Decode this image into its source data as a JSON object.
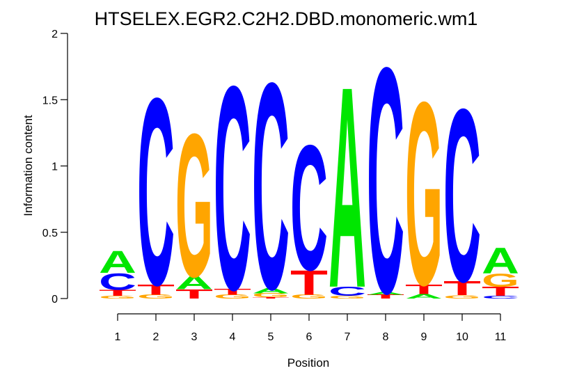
{
  "chart_data": {
    "type": "sequence-logo",
    "title": "HTSELEX.EGR2.C2H2.DBD.monomeric.wm1",
    "xlabel": "Position",
    "ylabel": "Information content",
    "ylim": [
      0,
      2
    ],
    "yticks": [
      "0",
      "0.5",
      "1",
      "1.5",
      "2"
    ],
    "positions": [
      "1",
      "2",
      "3",
      "4",
      "5",
      "6",
      "7",
      "8",
      "9",
      "10",
      "11"
    ],
    "colors": {
      "A": "#00e600",
      "C": "#0000ff",
      "G": "#ffa500",
      "T": "#ff0000"
    },
    "columns": [
      {
        "position": "1",
        "letters": [
          {
            "base": "G",
            "height": 0.02
          },
          {
            "base": "T",
            "height": 0.045
          },
          {
            "base": "C",
            "height": 0.13
          },
          {
            "base": "A",
            "height": 0.17
          }
        ]
      },
      {
        "position": "2",
        "letters": [
          {
            "base": "G",
            "height": 0.03
          },
          {
            "base": "T",
            "height": 0.08
          },
          {
            "base": "C",
            "height": 1.45
          }
        ]
      },
      {
        "position": "3",
        "letters": [
          {
            "base": "T",
            "height": 0.07
          },
          {
            "base": "A",
            "height": 0.1
          },
          {
            "base": "G",
            "height": 1.11
          }
        ]
      },
      {
        "position": "4",
        "letters": [
          {
            "base": "G",
            "height": 0.03
          },
          {
            "base": "T",
            "height": 0.045
          },
          {
            "base": "C",
            "height": 1.58
          }
        ]
      },
      {
        "position": "5",
        "letters": [
          {
            "base": "T",
            "height": 0.01
          },
          {
            "base": "G",
            "height": 0.03
          },
          {
            "base": "A",
            "height": 0.04
          },
          {
            "base": "C",
            "height": 1.6
          }
        ]
      },
      {
        "position": "6",
        "letters": [
          {
            "base": "G",
            "height": 0.03
          },
          {
            "base": "T",
            "height": 0.19
          },
          {
            "base": "C",
            "height": 0.97
          }
        ]
      },
      {
        "position": "7",
        "letters": [
          {
            "base": "G",
            "height": 0.02
          },
          {
            "base": "C",
            "height": 0.07
          },
          {
            "base": "A",
            "height": 1.56
          }
        ]
      },
      {
        "position": "8",
        "letters": [
          {
            "base": "T",
            "height": 0.03
          },
          {
            "base": "A",
            "height": 0.02
          },
          {
            "base": "C",
            "height": 1.75
          }
        ]
      },
      {
        "position": "9",
        "letters": [
          {
            "base": "A",
            "height": 0.035
          },
          {
            "base": "T",
            "height": 0.075
          },
          {
            "base": "G",
            "height": 1.42
          }
        ]
      },
      {
        "position": "10",
        "letters": [
          {
            "base": "G",
            "height": 0.025
          },
          {
            "base": "T",
            "height": 0.11
          },
          {
            "base": "C",
            "height": 1.34
          }
        ]
      },
      {
        "position": "11",
        "letters": [
          {
            "base": "C",
            "height": 0.02
          },
          {
            "base": "T",
            "height": 0.07
          },
          {
            "base": "G",
            "height": 0.1
          },
          {
            "base": "A",
            "height": 0.2
          }
        ]
      }
    ]
  }
}
